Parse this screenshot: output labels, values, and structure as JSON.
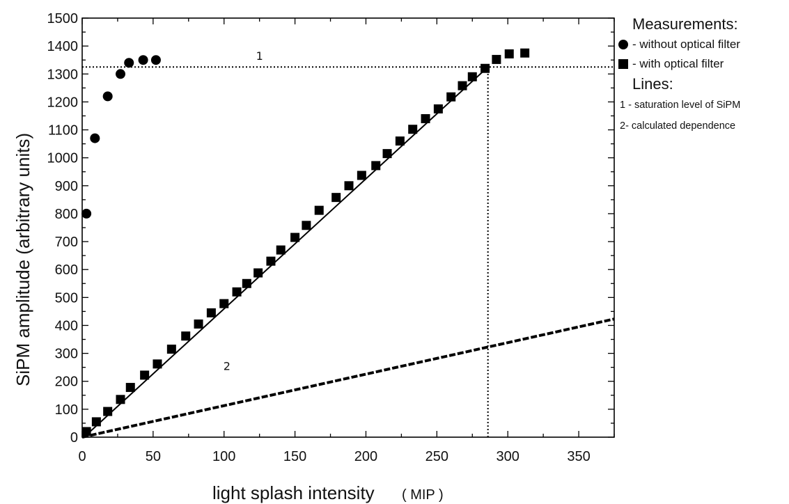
{
  "chart_data": {
    "type": "scatter",
    "xlabel": "light splash intensity",
    "xunit": "( MIP )",
    "ylabel": "SiPM amplitude (arbitrary units)",
    "xlim": [
      0,
      375
    ],
    "ylim": [
      0,
      1500
    ],
    "x_ticks": [
      0,
      50,
      100,
      150,
      200,
      250,
      300,
      350
    ],
    "y_ticks": [
      0,
      100,
      200,
      300,
      400,
      500,
      600,
      700,
      800,
      900,
      1000,
      1100,
      1200,
      1300,
      1400,
      1500
    ],
    "series": [
      {
        "name": "- without optical filter",
        "marker": "circle",
        "points": [
          [
            3,
            800
          ],
          [
            9,
            1070
          ],
          [
            18,
            1220
          ],
          [
            27,
            1300
          ],
          [
            33,
            1340
          ],
          [
            43,
            1350
          ],
          [
            52,
            1350
          ]
        ]
      },
      {
        "name": "- with optical filter",
        "marker": "square",
        "points": [
          [
            3,
            20
          ],
          [
            10,
            55
          ],
          [
            18,
            92
          ],
          [
            27,
            135
          ],
          [
            34,
            178
          ],
          [
            44,
            222
          ],
          [
            53,
            262
          ],
          [
            63,
            315
          ],
          [
            73,
            362
          ],
          [
            82,
            405
          ],
          [
            91,
            445
          ],
          [
            100,
            478
          ],
          [
            109,
            520
          ],
          [
            116,
            550
          ],
          [
            124,
            588
          ],
          [
            133,
            630
          ],
          [
            140,
            670
          ],
          [
            150,
            715
          ],
          [
            158,
            758
          ],
          [
            167,
            812
          ],
          [
            179,
            858
          ],
          [
            188,
            900
          ],
          [
            197,
            937
          ],
          [
            207,
            972
          ],
          [
            215,
            1015
          ],
          [
            224,
            1060
          ],
          [
            233,
            1102
          ],
          [
            242,
            1140
          ],
          [
            251,
            1175
          ],
          [
            260,
            1218
          ],
          [
            268,
            1258
          ],
          [
            275,
            1290
          ],
          [
            284,
            1320
          ],
          [
            292,
            1352
          ],
          [
            301,
            1372
          ],
          [
            312,
            1375
          ]
        ]
      }
    ],
    "lines": [
      {
        "label": "1",
        "style": "dotted",
        "points": [
          [
            0,
            1325
          ],
          [
            375,
            1325
          ]
        ]
      },
      {
        "label": "2",
        "style": "dashed",
        "points": [
          [
            0,
            0
          ],
          [
            375,
            423
          ]
        ]
      },
      {
        "label": "",
        "style": "dotted",
        "points": [
          [
            286,
            0
          ],
          [
            286,
            1325
          ]
        ]
      },
      {
        "label": "",
        "style": "solid",
        "points": [
          [
            3,
            8
          ],
          [
            286,
            1325
          ]
        ]
      }
    ],
    "grid": false,
    "legend_position": "right"
  },
  "legend": {
    "measurements_heading": "Measurements:",
    "items": [
      {
        "symbol": "circle",
        "text": "- without optical filter"
      },
      {
        "symbol": "square",
        "text": "- with optical filter"
      }
    ],
    "lines_heading": "Lines:",
    "line_items": [
      "1 - saturation level of SiPM",
      "2- calculated dependence"
    ]
  }
}
